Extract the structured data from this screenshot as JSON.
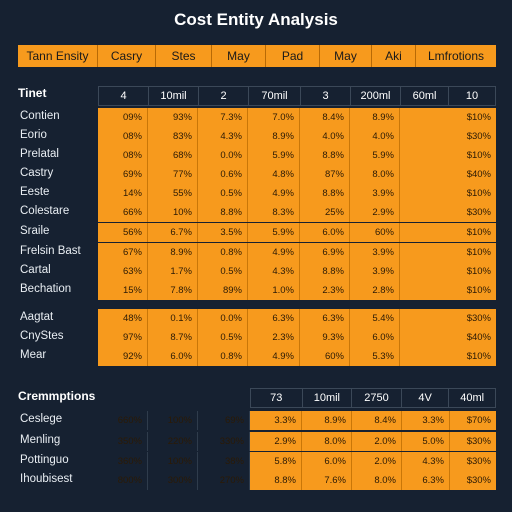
{
  "title": "Cost Entity Analysis",
  "header": [
    "Tann Ensity",
    "Casry",
    "Stes",
    "May",
    "Pad",
    "May",
    "Aki",
    "Lmfrotions"
  ],
  "section1": {
    "label": "Tinet",
    "subheader": [
      "4",
      "10mil",
      "2",
      "70mil",
      "3",
      "200ml",
      "60ml",
      "10"
    ],
    "rows": [
      {
        "label": "Contien",
        "values": [
          "09%",
          "93%",
          "7.3%",
          "7.0%",
          "8.4%",
          "8.9%",
          "$10%"
        ]
      },
      {
        "label": "Eorio",
        "values": [
          "08%",
          "83%",
          "4.3%",
          "8.9%",
          "4.0%",
          "4.0%",
          "$30%"
        ]
      },
      {
        "label": "Prelatal",
        "values": [
          "08%",
          "68%",
          "0.0%",
          "5.9%",
          "8.8%",
          "5.9%",
          "$10%"
        ]
      },
      {
        "label": "Castry",
        "values": [
          "69%",
          "77%",
          "0.6%",
          "4.8%",
          "87%",
          "8.0%",
          "$40%"
        ]
      },
      {
        "label": "Eeste",
        "values": [
          "14%",
          "55%",
          "0.5%",
          "4.9%",
          "8.8%",
          "3.9%",
          "$10%"
        ]
      },
      {
        "label": "Colestare",
        "values": [
          "66%",
          "10%",
          "8.8%",
          "8.3%",
          "25%",
          "2.9%",
          "$30%"
        ]
      },
      {
        "label": "Sraile",
        "values": [
          "56%",
          "6.7%",
          "3.5%",
          "5.9%",
          "6.0%",
          "60%",
          "$10%"
        ]
      },
      {
        "label": "Frelsin Bast",
        "values": [
          "67%",
          "8.9%",
          "0.8%",
          "4.9%",
          "6.9%",
          "3.9%",
          "$10%"
        ]
      },
      {
        "label": "Cartal",
        "values": [
          "63%",
          "1.7%",
          "0.5%",
          "4.3%",
          "8.8%",
          "3.9%",
          "$10%"
        ]
      },
      {
        "label": "Bechation",
        "values": [
          "15%",
          "7.8%",
          "89%",
          "1.0%",
          "2.3%",
          "2.8%",
          "$10%"
        ]
      },
      {
        "label": "Aagtat",
        "values": [
          "48%",
          "0.1%",
          "0.0%",
          "6.3%",
          "6.3%",
          "5.4%",
          "$30%"
        ]
      },
      {
        "label": "CnyStes",
        "values": [
          "97%",
          "8.7%",
          "0.5%",
          "2.3%",
          "9.3%",
          "6.0%",
          "$40%"
        ]
      },
      {
        "label": "Mear",
        "values": [
          "92%",
          "6.0%",
          "0.8%",
          "4.9%",
          "60%",
          "5.3%",
          "$10%"
        ]
      }
    ]
  },
  "section2": {
    "label": "Cremmptions",
    "subheader": [
      "73",
      "10mil",
      "2750",
      "4V",
      "40ml"
    ],
    "rows": [
      {
        "label": "Ceslege",
        "dark": [
          "660%",
          "100%",
          "69%"
        ],
        "values": [
          "3.3%",
          "8.9%",
          "8.4%",
          "3.3%",
          "$70%"
        ]
      },
      {
        "label": "Menling",
        "dark": [
          "350%",
          "220%",
          "330%"
        ],
        "values": [
          "2.9%",
          "8.0%",
          "2.0%",
          "5.0%",
          "$30%"
        ]
      },
      {
        "label": "Pottinguo",
        "dark": [
          "360%",
          "100%",
          "38%"
        ],
        "values": [
          "5.8%",
          "6.0%",
          "2.0%",
          "4.3%",
          "$30%"
        ]
      },
      {
        "label": "Ihoubisest",
        "dark": [
          "800%",
          "300%",
          "270%"
        ],
        "values": [
          "8.8%",
          "7.6%",
          "8.0%",
          "6.3%",
          "$30%"
        ]
      }
    ]
  }
}
